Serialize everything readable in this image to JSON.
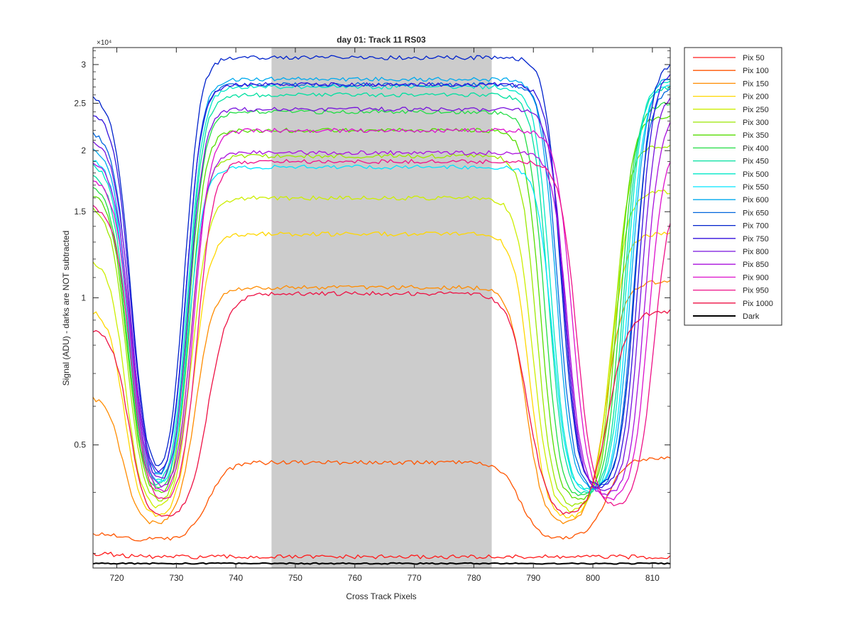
{
  "chart_data": {
    "type": "line",
    "title": "day 01: Track 11  RS03",
    "xlabel": "Cross Track Pixels",
    "ylabel": "Signal (ADU) - darks are NOT subtracted",
    "y_exponent_label": "×10⁴",
    "xlim": [
      716,
      813
    ],
    "ylim": [
      2800,
      32500
    ],
    "yscale": "log",
    "x_ticks": [
      720,
      730,
      740,
      750,
      760,
      770,
      780,
      790,
      800,
      810
    ],
    "y_ticks": [
      {
        "value": 5000,
        "label": "0.5"
      },
      {
        "value": 10000,
        "label": "1"
      },
      {
        "value": 15000,
        "label": "1.5"
      },
      {
        "value": 20000,
        "label": "2"
      },
      {
        "value": 25000,
        "label": "2.5"
      },
      {
        "value": 30000,
        "label": "3"
      }
    ],
    "shaded_region": {
      "x_start": 746,
      "x_end": 783,
      "color": "#cccccc"
    },
    "grid": false,
    "legend_position": "outside-right",
    "series": [
      {
        "name": "Pix 50",
        "color": "#ff1a1a",
        "plateau": 2950,
        "bottom": 2950,
        "rise_center": 735.0,
        "fall_center": 787.0,
        "width": 1.5,
        "left_edge": 3000,
        "right_edge": 2950
      },
      {
        "name": "Pix 100",
        "color": "#ff5500",
        "plateau": 4600,
        "bottom": 3200,
        "rise_center": 735.5,
        "fall_center": 787.5,
        "width": 1.6,
        "left_edge": 3300,
        "right_edge": 4700
      },
      {
        "name": "Pix 150",
        "color": "#ff8c00",
        "plateau": 10500,
        "bottom": 3400,
        "rise_center": 734.0,
        "fall_center": 788.0,
        "width": 1.4,
        "left_edge": 6300,
        "right_edge": 10800
      },
      {
        "name": "Pix 200",
        "color": "#ffd700",
        "plateau": 13500,
        "bottom": 3500,
        "rise_center": 733.8,
        "fall_center": 788.5,
        "width": 1.3,
        "left_edge": 9500,
        "right_edge": 13500
      },
      {
        "name": "Pix 250",
        "color": "#ccee00",
        "plateau": 16000,
        "bottom": 3600,
        "rise_center": 733.6,
        "fall_center": 789.0,
        "width": 1.3,
        "left_edge": 12000,
        "right_edge": 16500
      },
      {
        "name": "Pix 300",
        "color": "#9be800",
        "plateau": 19500,
        "bottom": 3700,
        "rise_center": 733.5,
        "fall_center": 789.6,
        "width": 1.2,
        "left_edge": 15500,
        "right_edge": 20500
      },
      {
        "name": "Pix 350",
        "color": "#55dd00",
        "plateau": 22000,
        "bottom": 3800,
        "rise_center": 733.4,
        "fall_center": 790.2,
        "width": 1.2,
        "left_edge": 16500,
        "right_edge": 23500
      },
      {
        "name": "Pix 400",
        "color": "#22dd44",
        "plateau": 24000,
        "bottom": 3850,
        "rise_center": 733.3,
        "fall_center": 790.8,
        "width": 1.2,
        "left_edge": 17000,
        "right_edge": 25000
      },
      {
        "name": "Pix 450",
        "color": "#00e0a0",
        "plateau": 26000,
        "bottom": 3900,
        "rise_center": 733.2,
        "fall_center": 791.4,
        "width": 1.2,
        "left_edge": 18000,
        "right_edge": 27000
      },
      {
        "name": "Pix 500",
        "color": "#00e8c8",
        "plateau": 27000,
        "bottom": 3950,
        "rise_center": 733.1,
        "fall_center": 791.8,
        "width": 1.2,
        "left_edge": 19000,
        "right_edge": 28000
      },
      {
        "name": "Pix 550",
        "color": "#00e5ff",
        "plateau": 18500,
        "bottom": 3950,
        "rise_center": 733.0,
        "fall_center": 792.2,
        "width": 1.2,
        "left_edge": 19500,
        "right_edge": 27500
      },
      {
        "name": "Pix 600",
        "color": "#00aaee",
        "plateau": 28000,
        "bottom": 4000,
        "rise_center": 732.9,
        "fall_center": 792.6,
        "width": 1.2,
        "left_edge": 20500,
        "right_edge": 28500
      },
      {
        "name": "Pix 650",
        "color": "#0066dd",
        "plateau": 27300,
        "bottom": 4000,
        "rise_center": 732.8,
        "fall_center": 793.0,
        "width": 1.2,
        "left_edge": 22000,
        "right_edge": 27000
      },
      {
        "name": "Pix 700",
        "color": "#0022cc",
        "plateau": 31000,
        "bottom": 4050,
        "rise_center": 732.6,
        "fall_center": 793.4,
        "width": 1.2,
        "left_edge": 26000,
        "right_edge": 30500
      },
      {
        "name": "Pix 750",
        "color": "#3311dd",
        "plateau": 27300,
        "bottom": 4000,
        "rise_center": 732.8,
        "fall_center": 793.8,
        "width": 1.2,
        "left_edge": 24000,
        "right_edge": 29500
      },
      {
        "name": "Pix 800",
        "color": "#7711dd",
        "plateau": 24300,
        "bottom": 3950,
        "rise_center": 733.2,
        "fall_center": 794.2,
        "width": 1.2,
        "left_edge": 21000,
        "right_edge": 26500
      },
      {
        "name": "Pix 850",
        "color": "#aa11dd",
        "plateau": 19800,
        "bottom": 3900,
        "rise_center": 733.6,
        "fall_center": 794.8,
        "width": 1.2,
        "left_edge": 19000,
        "right_edge": 24000
      },
      {
        "name": "Pix 900",
        "color": "#dd11cc",
        "plateau": 22000,
        "bottom": 3800,
        "rise_center": 734.1,
        "fall_center": 795.4,
        "width": 1.25,
        "left_edge": 17500,
        "right_edge": 21000
      },
      {
        "name": "Pix 950",
        "color": "#ee1188",
        "plateau": 19000,
        "bottom": 3700,
        "rise_center": 734.6,
        "fall_center": 796.2,
        "width": 1.3,
        "left_edge": 15500,
        "right_edge": 17000
      },
      {
        "name": "Pix 1000",
        "color": "#ee1144",
        "plateau": 10200,
        "bottom": 3500,
        "rise_center": 736.2,
        "fall_center": 788.3,
        "width": 1.6,
        "left_edge": 8600,
        "right_edge": 9400
      },
      {
        "name": "Dark",
        "color": "#000000",
        "plateau": 2860,
        "bottom": 2860,
        "rise_center": 735.0,
        "fall_center": 787.0,
        "width": 1.5,
        "left_edge": 2860,
        "right_edge": 2860
      }
    ]
  }
}
